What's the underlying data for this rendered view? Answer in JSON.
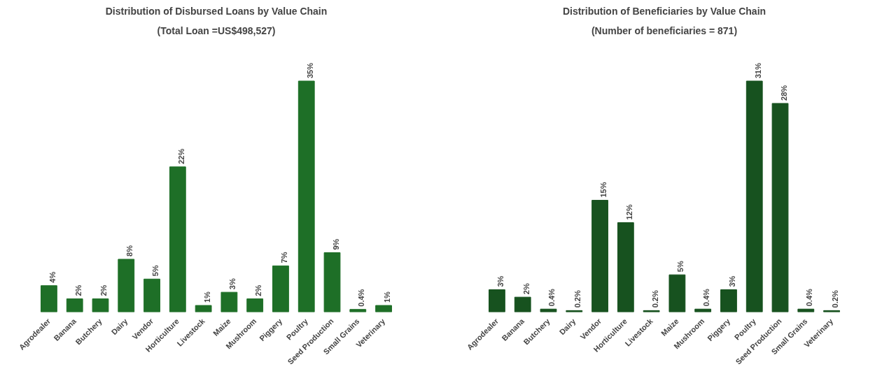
{
  "chart_data": [
    {
      "type": "bar",
      "title": "Distribution of Disbursed Loans by Value Chain",
      "subtitle": "(Total Loan =US$498,527)",
      "categories": [
        "Agrodealer",
        "Banana",
        "Butchery",
        "Dairy",
        "Vendor",
        "Horticulture",
        "Livestock",
        "Maize",
        "Mushroom",
        "Piggery",
        "Poultry",
        "Seed Production",
        "Small Grains",
        "Veterinary"
      ],
      "values": [
        4,
        2,
        2,
        8,
        5,
        22,
        1,
        3,
        2,
        7,
        35,
        9,
        0.4,
        1
      ],
      "value_labels": [
        "4%",
        "2%",
        "2%",
        "8%",
        "5%",
        "22%",
        "1%",
        "3%",
        "2%",
        "7%",
        "35%",
        "9%",
        "0.4%",
        "1%"
      ],
      "color": "#1e6f27",
      "grid": false
    },
    {
      "type": "bar",
      "title": "Distribution of Beneficiaries by Value Chain",
      "subtitle": "(Number of beneficiaries = 871)",
      "categories": [
        "Agrodealer",
        "Banana",
        "Butchery",
        "Dairy",
        "Vendor",
        "Horticulture",
        "Livestock",
        "Maize",
        "Mushroom",
        "Piggery",
        "Poultry",
        "Seed Production",
        "Small Grains",
        "Veterinary"
      ],
      "values": [
        3,
        2,
        0.4,
        0.2,
        15,
        12,
        0.2,
        5,
        0.4,
        3,
        31,
        28,
        0.4,
        0.2
      ],
      "value_labels": [
        "3%",
        "2%",
        "0.4%",
        "0.2%",
        "15%",
        "12%",
        "0.2%",
        "5%",
        "0.4%",
        "3%",
        "31%",
        "28%",
        "0.4%",
        "0.2%"
      ],
      "color": "#17521f",
      "grid": false
    }
  ]
}
